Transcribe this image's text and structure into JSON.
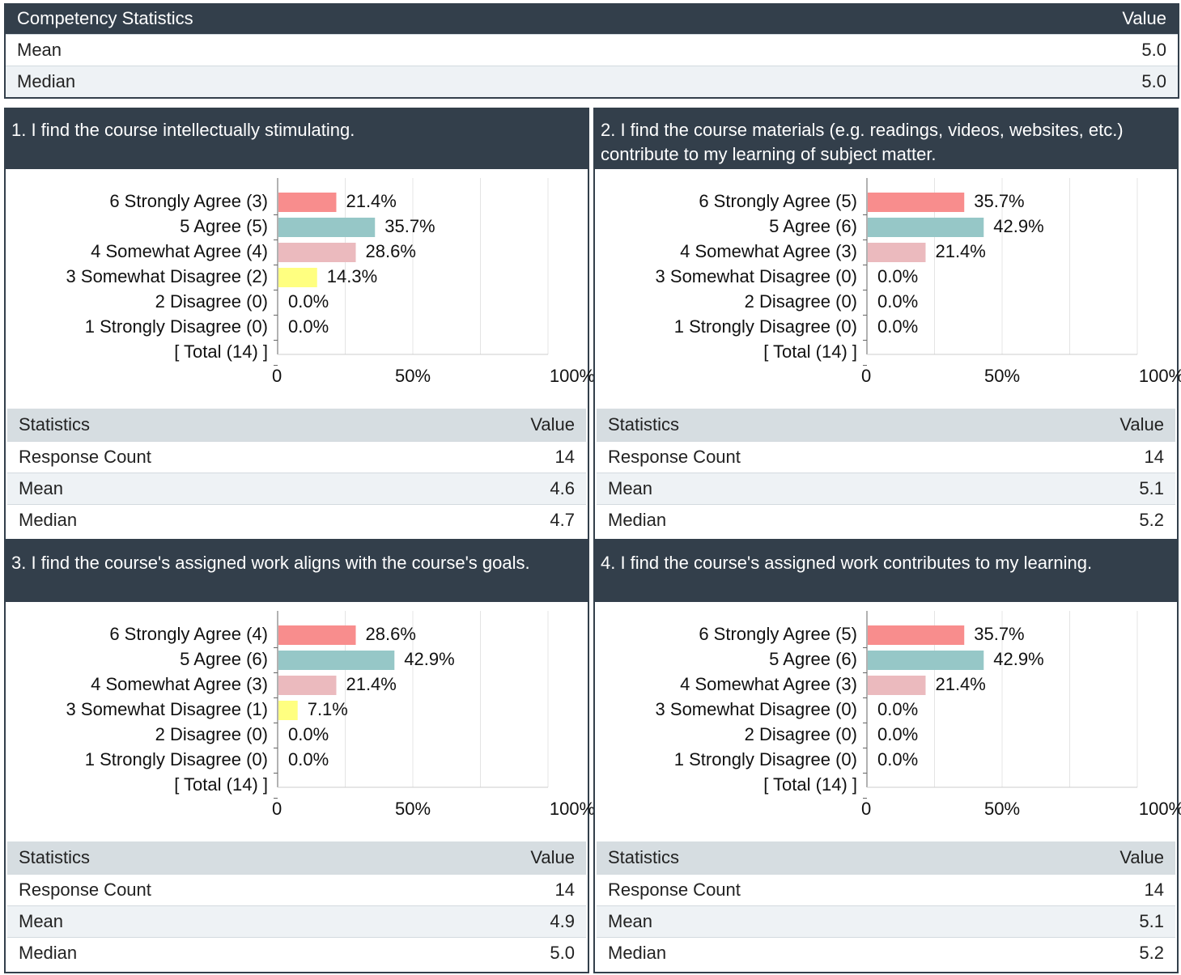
{
  "summary": {
    "header": [
      "Competency Statistics",
      "Value"
    ],
    "rows": [
      [
        "Mean",
        "5.0"
      ],
      [
        "Median",
        "5.0"
      ]
    ]
  },
  "chart_data": [
    {
      "type": "bar",
      "orientation": "horizontal",
      "title": "1. I find the course intellectually stimulating.",
      "categories": [
        "6 Strongly Agree (3)",
        "5 Agree (5)",
        "4 Somewhat Agree (4)",
        "3 Somewhat Disagree (2)",
        "2 Disagree (0)",
        "1 Strongly Disagree (0)",
        "[ Total (14) ]"
      ],
      "values": [
        21.4,
        35.7,
        28.6,
        14.3,
        0,
        0,
        null
      ],
      "value_labels": [
        "21.4%",
        "35.7%",
        "28.6%",
        "14.3%",
        "0.0%",
        "0.0%",
        null
      ],
      "colors": [
        "#f88d8d",
        "#96c7c7",
        "#ebbabe",
        "#ffff80"
      ],
      "xlim": [
        0,
        100
      ],
      "xticks": [
        0,
        {
          "value": 50,
          "label": "50%"
        },
        {
          "value": 100,
          "label": "100%"
        }
      ],
      "minor_xticks": [
        25,
        75
      ],
      "grid": true
    },
    {
      "type": "bar",
      "orientation": "horizontal",
      "title": "2. I find the course materials (e.g. readings, videos, websites, etc.) contribute to my learning of subject matter.",
      "categories": [
        "6 Strongly Agree (5)",
        "5 Agree (6)",
        "4 Somewhat Agree (3)",
        "3 Somewhat Disagree (0)",
        "2 Disagree (0)",
        "1 Strongly Disagree (0)",
        "[ Total (14) ]"
      ],
      "values": [
        35.7,
        42.9,
        21.4,
        0,
        0,
        0,
        null
      ],
      "value_labels": [
        "35.7%",
        "42.9%",
        "21.4%",
        "0.0%",
        "0.0%",
        "0.0%",
        null
      ],
      "colors": [
        "#f88d8d",
        "#96c7c7",
        "#ebbabe",
        "#ffff80"
      ],
      "xlim": [
        0,
        100
      ],
      "xticks": [
        0,
        {
          "value": 50,
          "label": "50%"
        },
        {
          "value": 100,
          "label": "100%"
        }
      ],
      "minor_xticks": [
        25,
        75
      ],
      "grid": true
    },
    {
      "type": "bar",
      "orientation": "horizontal",
      "title": "3. I find the course's assigned work aligns with the course's goals.",
      "categories": [
        "6 Strongly Agree (4)",
        "5 Agree (6)",
        "4 Somewhat Agree (3)",
        "3 Somewhat Disagree (1)",
        "2 Disagree (0)",
        "1 Strongly Disagree (0)",
        "[ Total (14) ]"
      ],
      "values": [
        28.6,
        42.9,
        21.4,
        7.1,
        0,
        0,
        null
      ],
      "value_labels": [
        "28.6%",
        "42.9%",
        "21.4%",
        "7.1%",
        "0.0%",
        "0.0%",
        null
      ],
      "colors": [
        "#f88d8d",
        "#96c7c7",
        "#ebbabe",
        "#ffff80"
      ],
      "xlim": [
        0,
        100
      ],
      "xticks": [
        0,
        {
          "value": 50,
          "label": "50%"
        },
        {
          "value": 100,
          "label": "100%"
        }
      ],
      "minor_xticks": [
        25,
        75
      ],
      "grid": true
    },
    {
      "type": "bar",
      "orientation": "horizontal",
      "title": "4. I find the course's assigned work contributes to my learning.",
      "categories": [
        "6 Strongly Agree (5)",
        "5 Agree (6)",
        "4 Somewhat Agree (3)",
        "3 Somewhat Disagree (0)",
        "2 Disagree (0)",
        "1 Strongly Disagree (0)",
        "[ Total (14) ]"
      ],
      "values": [
        35.7,
        42.9,
        21.4,
        0,
        0,
        0,
        null
      ],
      "value_labels": [
        "35.7%",
        "42.9%",
        "21.4%",
        "0.0%",
        "0.0%",
        "0.0%",
        null
      ],
      "colors": [
        "#f88d8d",
        "#96c7c7",
        "#ebbabe",
        "#ffff80"
      ],
      "xlim": [
        0,
        100
      ],
      "xticks": [
        0,
        {
          "value": 50,
          "label": "50%"
        },
        {
          "value": 100,
          "label": "100%"
        }
      ],
      "minor_xticks": [
        25,
        75
      ],
      "grid": true
    }
  ],
  "question_stats": [
    {
      "header": [
        "Statistics",
        "Value"
      ],
      "rows": [
        [
          "Response Count",
          14
        ],
        [
          "Mean",
          4.6
        ],
        [
          "Median",
          4.7
        ]
      ]
    },
    {
      "header": [
        "Statistics",
        "Value"
      ],
      "rows": [
        [
          "Response Count",
          14
        ],
        [
          "Mean",
          5.1
        ],
        [
          "Median",
          5.2
        ]
      ]
    },
    {
      "header": [
        "Statistics",
        "Value"
      ],
      "rows": [
        [
          "Response Count",
          14
        ],
        [
          "Mean",
          4.9
        ],
        [
          "Median",
          "5.0"
        ]
      ]
    },
    {
      "header": [
        "Statistics",
        "Value"
      ],
      "rows": [
        [
          "Response Count",
          14
        ],
        [
          "Mean",
          5.1
        ],
        [
          "Median",
          5.2
        ]
      ]
    }
  ]
}
